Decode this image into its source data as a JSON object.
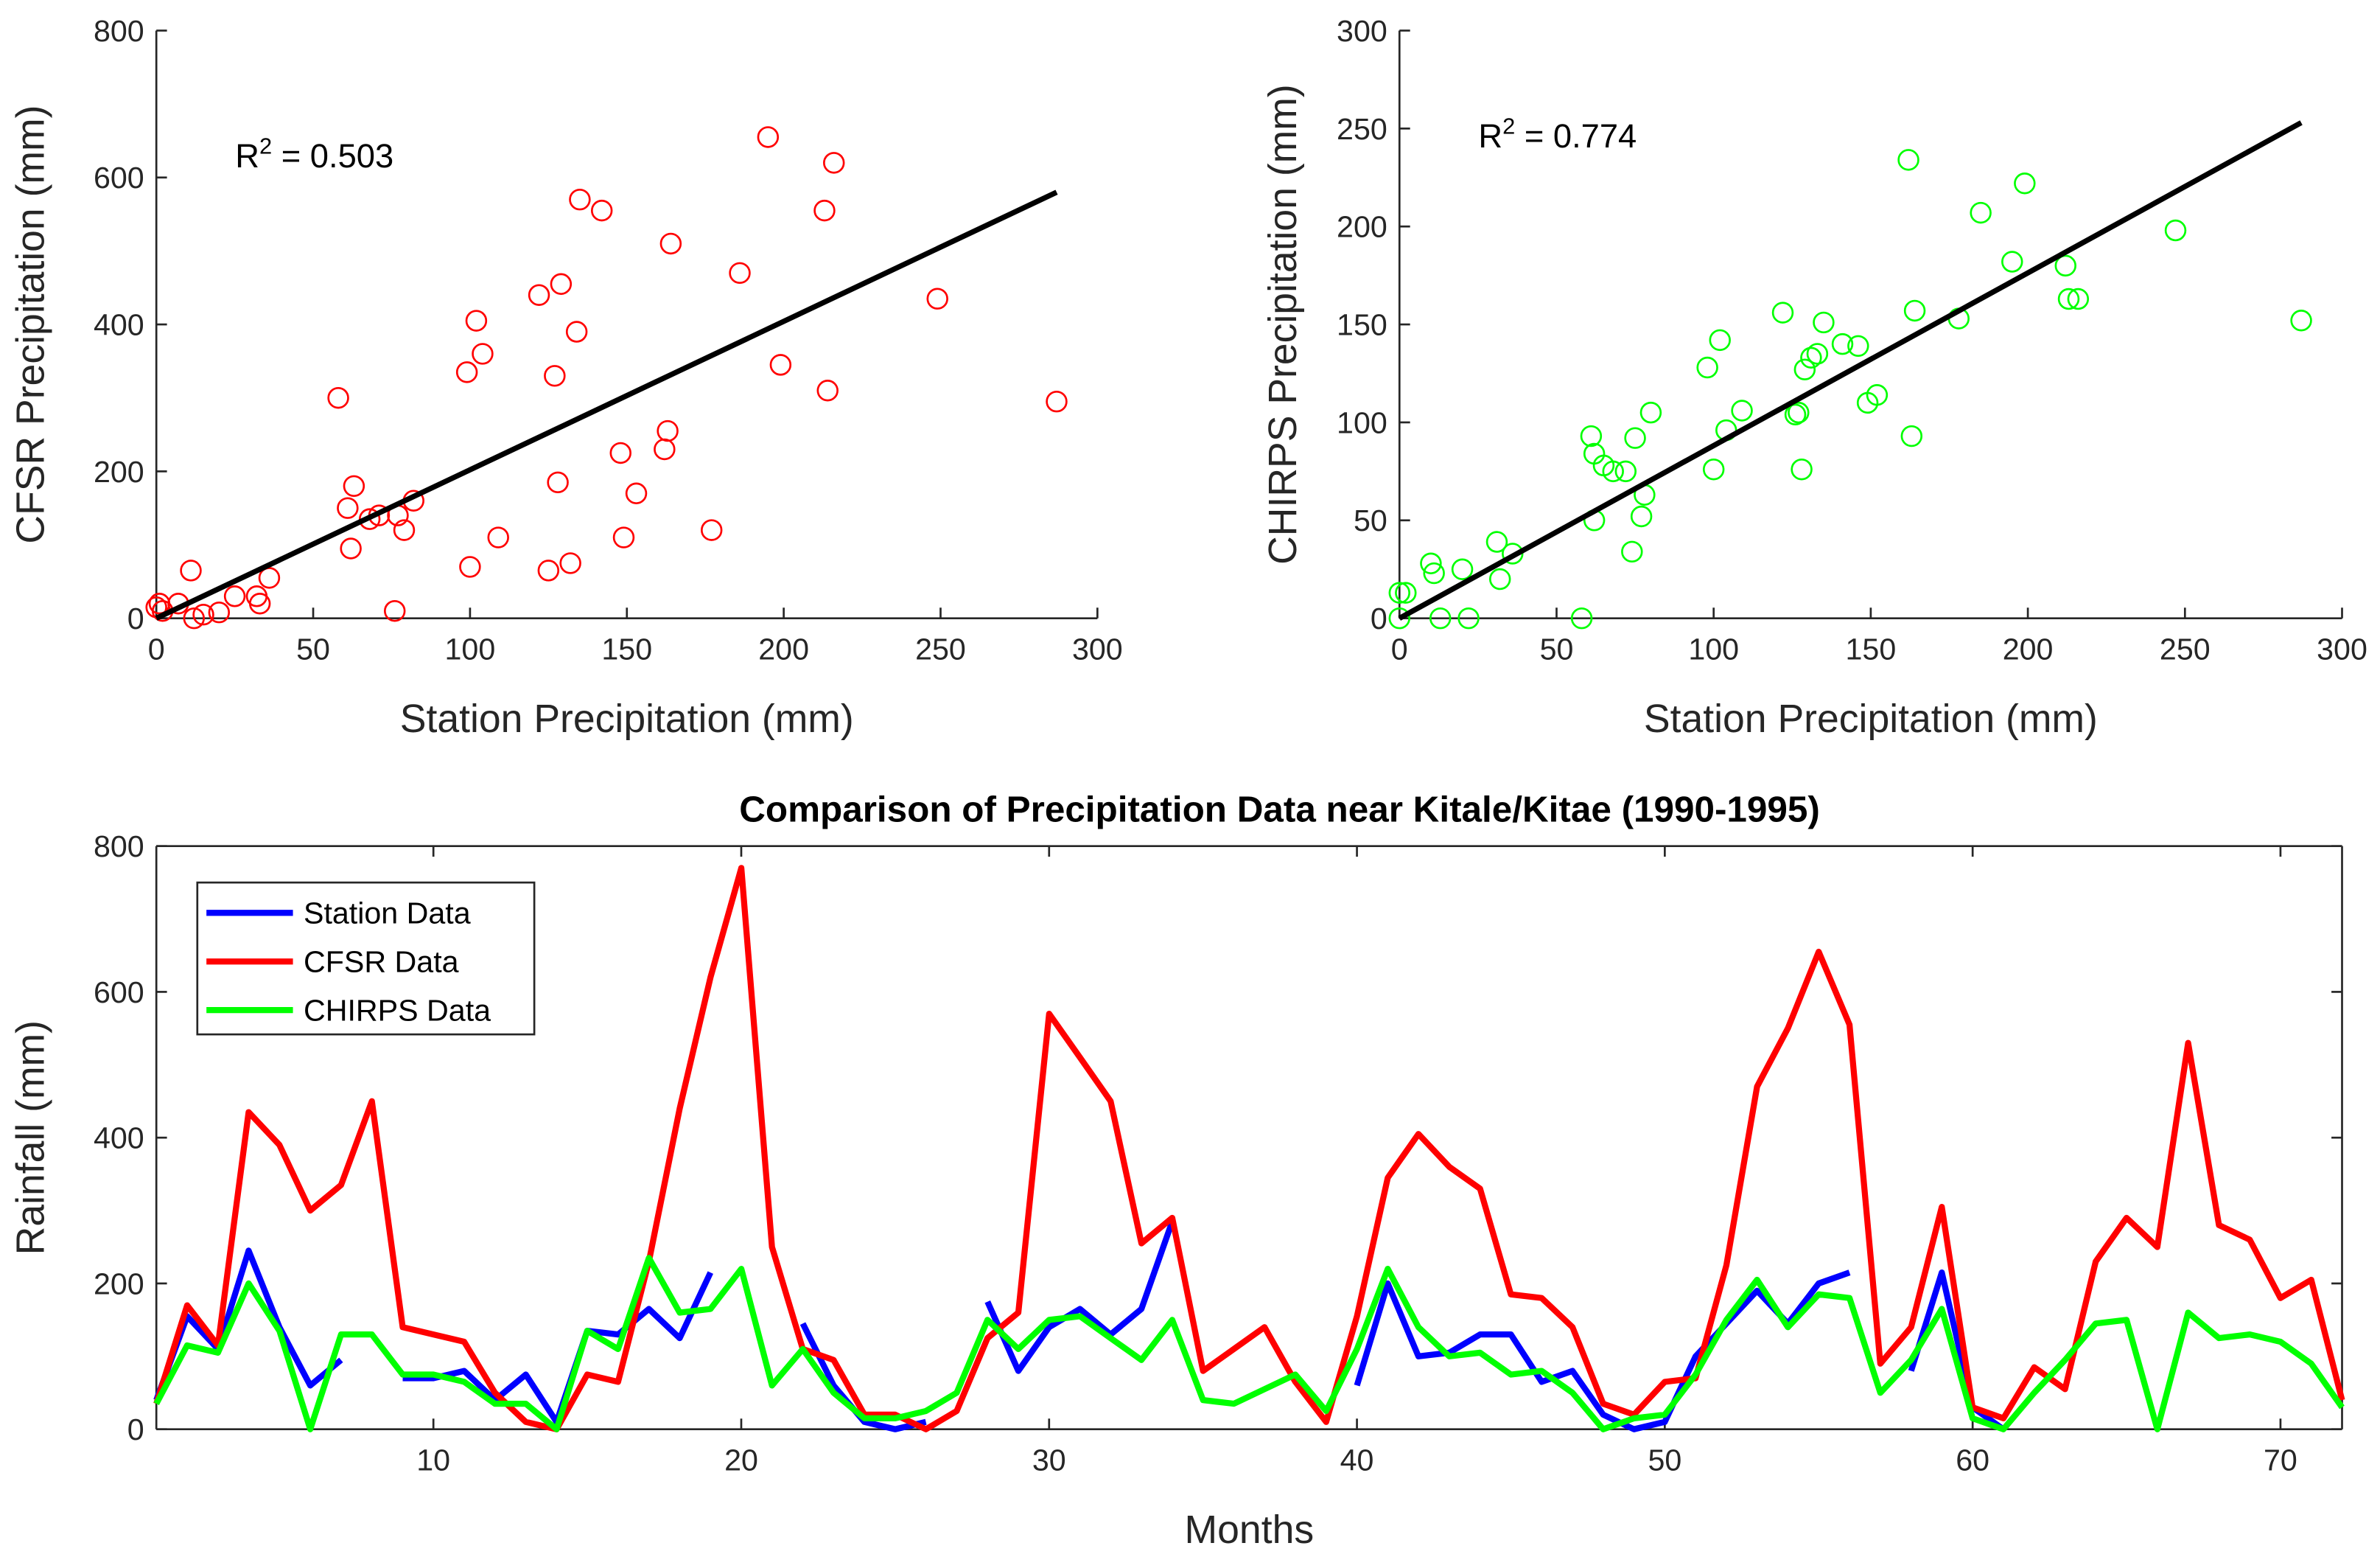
{
  "chart_data": [
    {
      "type": "scatter",
      "id": "cfsr",
      "xlabel": "Station Precipitation (mm)",
      "ylabel": "CFSR Precipitation (mm)",
      "xlim": [
        0,
        300
      ],
      "ylim": [
        0,
        800
      ],
      "xticks": [
        0,
        50,
        100,
        150,
        200,
        250,
        300
      ],
      "yticks": [
        0,
        200,
        400,
        600,
        800
      ],
      "annotation": "R² = 0.503",
      "r2_prefix": "R",
      "r2_sup": "2",
      "r2_value": " = 0.503",
      "marker_color": "#ff0000",
      "fit_color": "#000000",
      "fit_line": [
        [
          0,
          0
        ],
        [
          287,
          580
        ]
      ],
      "points": [
        [
          0,
          15
        ],
        [
          1,
          20
        ],
        [
          2,
          10
        ],
        [
          7,
          20
        ],
        [
          11,
          65
        ],
        [
          12,
          0
        ],
        [
          15,
          5
        ],
        [
          20,
          8
        ],
        [
          25,
          30
        ],
        [
          32,
          30
        ],
        [
          33,
          20
        ],
        [
          36,
          55
        ],
        [
          58,
          300
        ],
        [
          61,
          150
        ],
        [
          62,
          95
        ],
        [
          63,
          180
        ],
        [
          68,
          135
        ],
        [
          71,
          140
        ],
        [
          76,
          10
        ],
        [
          77,
          140
        ],
        [
          79,
          120
        ],
        [
          82,
          160
        ],
        [
          99,
          335
        ],
        [
          100,
          70
        ],
        [
          102,
          405
        ],
        [
          104,
          360
        ],
        [
          109,
          110
        ],
        [
          122,
          440
        ],
        [
          125,
          65
        ],
        [
          127,
          330
        ],
        [
          128,
          185
        ],
        [
          129,
          455
        ],
        [
          132,
          75
        ],
        [
          134,
          390
        ],
        [
          135,
          570
        ],
        [
          142,
          555
        ],
        [
          148,
          225
        ],
        [
          149,
          110
        ],
        [
          153,
          170
        ],
        [
          162,
          230
        ],
        [
          163,
          255
        ],
        [
          164,
          510
        ],
        [
          177,
          120
        ],
        [
          186,
          470
        ],
        [
          195,
          655
        ],
        [
          199,
          345
        ],
        [
          213,
          555
        ],
        [
          214,
          310
        ],
        [
          216,
          620
        ],
        [
          249,
          435
        ],
        [
          287,
          295
        ]
      ]
    },
    {
      "type": "scatter",
      "id": "chirps",
      "xlabel": "Station Precipitation (mm)",
      "ylabel": "CHIRPS Precipitation (mm)",
      "xlim": [
        0,
        300
      ],
      "ylim": [
        0,
        300
      ],
      "xticks": [
        0,
        50,
        100,
        150,
        200,
        250,
        300
      ],
      "yticks": [
        0,
        50,
        100,
        150,
        200,
        250,
        300
      ],
      "annotation": "R² = 0.774",
      "r2_prefix": "R",
      "r2_sup": "2",
      "r2_value": " = 0.774",
      "marker_color": "#00ff00",
      "fit_color": "#000000",
      "fit_line": [
        [
          0,
          0
        ],
        [
          287,
          253
        ]
      ],
      "points": [
        [
          0,
          0
        ],
        [
          0,
          13
        ],
        [
          2,
          13
        ],
        [
          10,
          28
        ],
        [
          11,
          23
        ],
        [
          13,
          0
        ],
        [
          20,
          25
        ],
        [
          22,
          0
        ],
        [
          31,
          39
        ],
        [
          32,
          20
        ],
        [
          36,
          33
        ],
        [
          58,
          0
        ],
        [
          61,
          93
        ],
        [
          62,
          84
        ],
        [
          62,
          50
        ],
        [
          65,
          78
        ],
        [
          68,
          75
        ],
        [
          72,
          75
        ],
        [
          74,
          34
        ],
        [
          75,
          92
        ],
        [
          77,
          52
        ],
        [
          78,
          63
        ],
        [
          80,
          105
        ],
        [
          98,
          128
        ],
        [
          100,
          76
        ],
        [
          102,
          142
        ],
        [
          104,
          96
        ],
        [
          109,
          106
        ],
        [
          122,
          156
        ],
        [
          126,
          104
        ],
        [
          127,
          105
        ],
        [
          128,
          76
        ],
        [
          129,
          127
        ],
        [
          131,
          133
        ],
        [
          133,
          135
        ],
        [
          135,
          151
        ],
        [
          141,
          140
        ],
        [
          146,
          139
        ],
        [
          149,
          110
        ],
        [
          152,
          114
        ],
        [
          162,
          234
        ],
        [
          163,
          93
        ],
        [
          164,
          157
        ],
        [
          178,
          153
        ],
        [
          185,
          207
        ],
        [
          195,
          182
        ],
        [
          199,
          222
        ],
        [
          212,
          180
        ],
        [
          213,
          163
        ],
        [
          216,
          163
        ],
        [
          247,
          198
        ],
        [
          287,
          152
        ]
      ]
    },
    {
      "type": "line",
      "id": "timeseries",
      "title": "Comparison of Precipitation Data near Kitale/Kitae (1990-1995)",
      "xlabel": "Months",
      "ylabel": "Rainfall (mm)",
      "xlim": [
        1,
        72
      ],
      "ylim": [
        0,
        800
      ],
      "xticks": [
        10,
        20,
        30,
        40,
        50,
        60,
        70
      ],
      "yticks": [
        0,
        200,
        400,
        600,
        800
      ],
      "grid": false,
      "legend_position": "top-left",
      "series": [
        {
          "name": "Station Data",
          "color": "#0000ff",
          "values": [
            40,
            155,
            110,
            245,
            140,
            60,
            95,
            null,
            70,
            70,
            80,
            40,
            75,
            10,
            135,
            130,
            165,
            125,
            215,
            null,
            null,
            145,
            60,
            10,
            0,
            10,
            null,
            175,
            80,
            140,
            165,
            130,
            165,
            285,
            null,
            null,
            null,
            null,
            null,
            60,
            200,
            100,
            105,
            130,
            130,
            65,
            80,
            20,
            0,
            10,
            100,
            145,
            190,
            145,
            200,
            215,
            null,
            80,
            215,
            30,
            0,
            null,
            null,
            null,
            null,
            null,
            null,
            null,
            null,
            null,
            null,
            null
          ]
        },
        {
          "name": "CFSR Data",
          "color": "#ff0000",
          "values": [
            35,
            170,
            115,
            435,
            390,
            300,
            335,
            450,
            140,
            130,
            120,
            50,
            10,
            0,
            75,
            65,
            230,
            440,
            620,
            770,
            250,
            110,
            95,
            20,
            20,
            0,
            25,
            125,
            160,
            570,
            510,
            450,
            255,
            290,
            80,
            110,
            140,
            65,
            10,
            155,
            345,
            405,
            360,
            330,
            185,
            180,
            140,
            35,
            20,
            65,
            70,
            225,
            470,
            550,
            655,
            555,
            90,
            140,
            305,
            30,
            15,
            85,
            55,
            230,
            290,
            250,
            530,
            280,
            260,
            180,
            205,
            40
          ]
        },
        {
          "name": "CHIRPS Data",
          "color": "#00ff00",
          "values": [
            35,
            115,
            105,
            200,
            135,
            0,
            130,
            130,
            75,
            75,
            65,
            35,
            35,
            0,
            135,
            110,
            235,
            160,
            165,
            220,
            60,
            110,
            50,
            15,
            15,
            25,
            50,
            150,
            110,
            150,
            155,
            125,
            95,
            150,
            40,
            35,
            55,
            75,
            25,
            110,
            220,
            140,
            100,
            105,
            75,
            80,
            50,
            0,
            15,
            20,
            75,
            150,
            205,
            140,
            185,
            180,
            50,
            95,
            165,
            15,
            0,
            50,
            95,
            145,
            150,
            0,
            160,
            125,
            130,
            120,
            90,
            30
          ]
        }
      ]
    }
  ]
}
